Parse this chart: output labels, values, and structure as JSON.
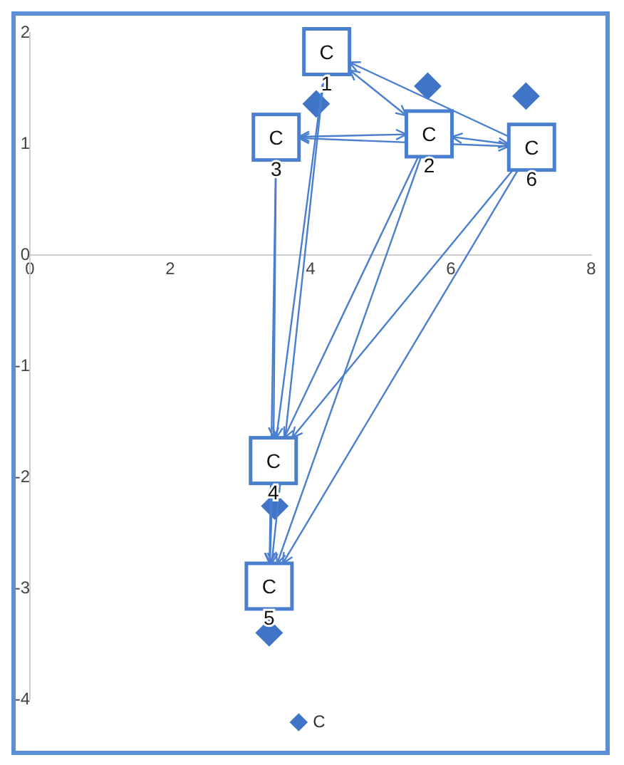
{
  "chart_data": {
    "type": "scatter",
    "marker": "diamond",
    "legend": "bottom",
    "grid": false,
    "xlim": [
      0,
      8
    ],
    "xticks": [
      0,
      2,
      4,
      6,
      8
    ],
    "ylim": [
      -4,
      2
    ],
    "yticks": [
      -4,
      -3,
      -2,
      -1,
      0,
      1,
      2
    ],
    "series": [
      {
        "name": "C",
        "color": "#3f74c6",
        "x": [
          4.08,
          5.67,
          7.07,
          3.49,
          3.41
        ],
        "values": [
          1.36,
          1.52,
          1.43,
          -2.26,
          -3.4
        ]
      }
    ],
    "annotations": [
      {
        "text": "C",
        "x": 4.23,
        "y": 1.83
      },
      {
        "text": "C",
        "x": 5.69,
        "y": 1.09
      },
      {
        "text": "C",
        "x": 3.51,
        "y": 1.06
      },
      {
        "text": "C",
        "x": 3.47,
        "y": -1.85
      },
      {
        "text": "C",
        "x": 3.41,
        "y": -2.98
      },
      {
        "text": "C",
        "x": 7.15,
        "y": 0.97
      },
      "1",
      "2",
      "3",
      "4",
      "5",
      "6"
    ]
  }
}
